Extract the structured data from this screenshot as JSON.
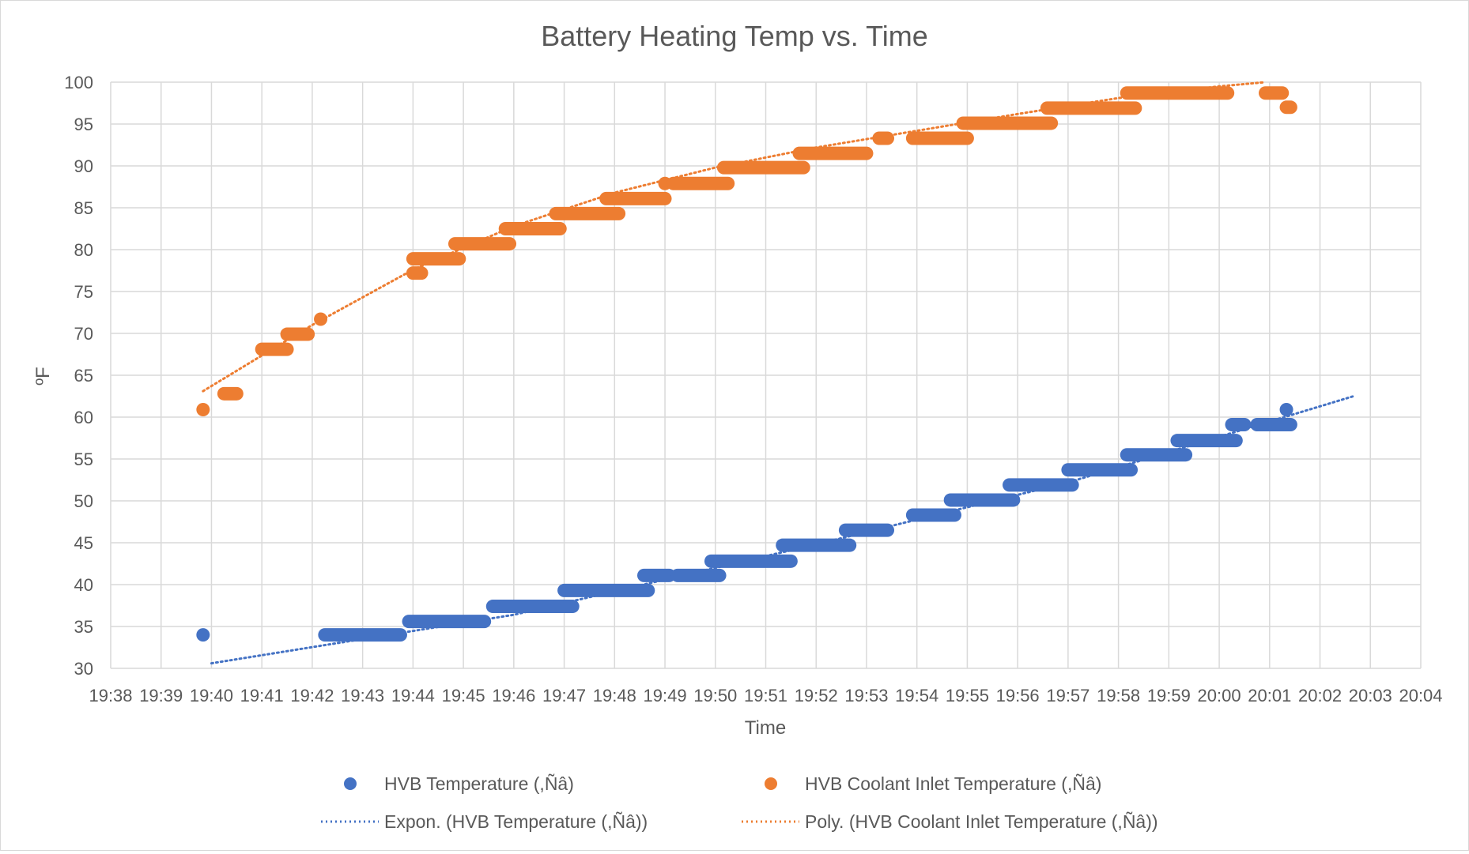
{
  "chart_data": {
    "type": "scatter",
    "title": "Battery Heating Temp vs. Time",
    "xlabel": "Time",
    "ylabel": "ºF",
    "xlim": [
      "19:38",
      "20:04"
    ],
    "ylim": [
      30,
      100
    ],
    "x_ticks": [
      "19:38",
      "19:39",
      "19:40",
      "19:41",
      "19:42",
      "19:43",
      "19:44",
      "19:45",
      "19:46",
      "19:47",
      "19:48",
      "19:49",
      "19:50",
      "19:51",
      "19:52",
      "19:53",
      "19:54",
      "19:55",
      "19:56",
      "19:57",
      "19:58",
      "19:59",
      "20:00",
      "20:01",
      "20:02",
      "20:03",
      "20:04"
    ],
    "y_ticks": [
      30,
      35,
      40,
      45,
      50,
      55,
      60,
      65,
      70,
      75,
      80,
      85,
      90,
      95,
      100
    ],
    "grid": true,
    "legend_position": "bottom",
    "colors": {
      "blue": "#4472c4",
      "orange": "#ed7d31",
      "grid": "#d9d9d9",
      "text": "#595959"
    },
    "series": [
      {
        "name": "HVB Temperature (,Ñâ)",
        "color": "#4472c4",
        "runs": [
          {
            "start": "19:39:50",
            "end": "19:39:50",
            "y": 34
          },
          {
            "start": "19:42:15",
            "end": "19:43:45",
            "y": 34
          },
          {
            "start": "19:43:55",
            "end": "19:45:25",
            "y": 35.6
          },
          {
            "start": "19:45:35",
            "end": "19:47:10",
            "y": 37.4
          },
          {
            "start": "19:47:00",
            "end": "19:48:40",
            "y": 39.3
          },
          {
            "start": "19:48:35",
            "end": "19:49:05",
            "y": 41.1
          },
          {
            "start": "19:49:15",
            "end": "19:50:05",
            "y": 41.1
          },
          {
            "start": "19:49:55",
            "end": "19:51:30",
            "y": 42.8
          },
          {
            "start": "19:51:20",
            "end": "19:52:40",
            "y": 44.7
          },
          {
            "start": "19:52:35",
            "end": "19:53:25",
            "y": 46.5
          },
          {
            "start": "19:53:55",
            "end": "19:54:45",
            "y": 48.3
          },
          {
            "start": "19:54:40",
            "end": "19:55:55",
            "y": 50.1
          },
          {
            "start": "19:55:50",
            "end": "19:57:05",
            "y": 51.9
          },
          {
            "start": "19:57:00",
            "end": "19:58:15",
            "y": 53.7
          },
          {
            "start": "19:58:10",
            "end": "19:59:20",
            "y": 55.5
          },
          {
            "start": "19:59:10",
            "end": "20:00:20",
            "y": 57.2
          },
          {
            "start": "20:00:15",
            "end": "20:00:30",
            "y": 59.1
          },
          {
            "start": "20:00:45",
            "end": "20:01:25",
            "y": 59.1
          },
          {
            "start": "20:01:20",
            "end": "20:01:20",
            "y": 60.9
          }
        ]
      },
      {
        "name": "HVB Coolant Inlet Temperature (,Ñâ)",
        "color": "#ed7d31",
        "runs": [
          {
            "start": "19:39:50",
            "end": "19:39:50",
            "y": 60.9
          },
          {
            "start": "19:40:15",
            "end": "19:40:30",
            "y": 62.8
          },
          {
            "start": "19:41:00",
            "end": "19:41:30",
            "y": 68.1
          },
          {
            "start": "19:41:30",
            "end": "19:41:55",
            "y": 69.9
          },
          {
            "start": "19:42:10",
            "end": "19:42:10",
            "y": 71.7
          },
          {
            "start": "19:44:00",
            "end": "19:44:10",
            "y": 77.2
          },
          {
            "start": "19:44:00",
            "end": "19:44:55",
            "y": 78.9
          },
          {
            "start": "19:44:50",
            "end": "19:45:55",
            "y": 80.7
          },
          {
            "start": "19:45:50",
            "end": "19:46:55",
            "y": 82.5
          },
          {
            "start": "19:46:50",
            "end": "19:48:05",
            "y": 84.3
          },
          {
            "start": "19:47:50",
            "end": "19:49:00",
            "y": 86.1
          },
          {
            "start": "19:49:00",
            "end": "19:49:00",
            "y": 87.9
          },
          {
            "start": "19:49:10",
            "end": "19:50:15",
            "y": 87.9
          },
          {
            "start": "19:50:10",
            "end": "19:51:45",
            "y": 89.8
          },
          {
            "start": "19:51:40",
            "end": "19:53:00",
            "y": 91.5
          },
          {
            "start": "19:53:15",
            "end": "19:53:25",
            "y": 93.3
          },
          {
            "start": "19:53:55",
            "end": "19:55:00",
            "y": 93.3
          },
          {
            "start": "19:54:55",
            "end": "19:56:40",
            "y": 95.1
          },
          {
            "start": "19:56:35",
            "end": "19:58:20",
            "y": 96.9
          },
          {
            "start": "19:58:10",
            "end": "20:00:10",
            "y": 98.7
          },
          {
            "start": "20:00:55",
            "end": "20:01:15",
            "y": 98.7
          },
          {
            "start": "20:01:20",
            "end": "20:01:25",
            "y": 97.0
          }
        ]
      }
    ],
    "trendlines": [
      {
        "name": "Expon. (HVB Temperature (,Ñâ))",
        "type": "exponential",
        "color": "#4472c4",
        "points": [
          [
            "19:40:00",
            30.6
          ],
          [
            "19:46:00",
            36.4
          ],
          [
            "19:52:00",
            44.8
          ],
          [
            "19:57:00",
            52.2
          ],
          [
            "20:02:40",
            62.5
          ]
        ]
      },
      {
        "name": "Poly. (HVB Coolant Inlet Temperature (,Ñâ))",
        "type": "polynomial",
        "color": "#ed7d31",
        "points": [
          [
            "19:39:50",
            63.1
          ],
          [
            "19:42:00",
            71.0
          ],
          [
            "19:44:00",
            77.6
          ],
          [
            "19:46:00",
            82.8
          ],
          [
            "19:48:00",
            86.8
          ],
          [
            "19:50:00",
            89.8
          ],
          [
            "19:52:00",
            92.2
          ],
          [
            "19:54:00",
            94.2
          ],
          [
            "19:56:00",
            96.2
          ],
          [
            "19:58:00",
            98.1
          ],
          [
            "20:00:00",
            99.5
          ],
          [
            "20:00:55",
            100.0
          ]
        ]
      }
    ],
    "legend": [
      {
        "label": "HVB Temperature (,Ñâ)",
        "marker": "dot",
        "color": "#4472c4"
      },
      {
        "label": "HVB Coolant Inlet Temperature (,Ñâ)",
        "marker": "dot",
        "color": "#ed7d31"
      },
      {
        "label": "Expon. (HVB Temperature (,Ñâ))",
        "marker": "dotted-line",
        "color": "#4472c4"
      },
      {
        "label": "Poly. (HVB Coolant Inlet Temperature (,Ñâ))",
        "marker": "dotted-line",
        "color": "#ed7d31"
      }
    ]
  }
}
